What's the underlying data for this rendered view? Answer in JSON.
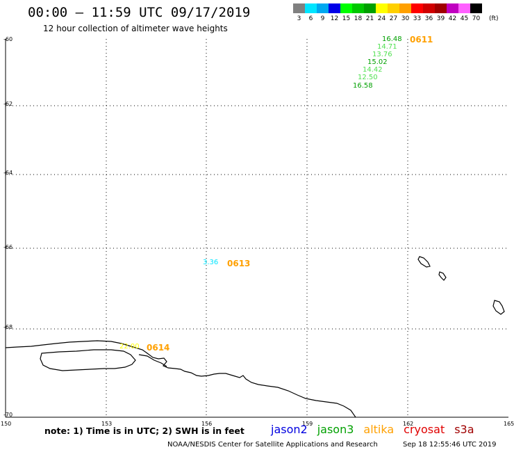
{
  "header": {
    "title": "00:00 – 11:59 UTC 09/17/2019",
    "subtitle": "12 hour collection of altimeter wave heights"
  },
  "legend": {
    "unit": "(ft)",
    "colors": [
      "#808080",
      "#00e5ff",
      "#00a8f0",
      "#0000e8",
      "#00ff00",
      "#00c800",
      "#00a000",
      "#ffff00",
      "#ffd000",
      "#ffa000",
      "#ff0000",
      "#d00000",
      "#a00000",
      "#c000c0",
      "#ff60ff",
      "#000000"
    ],
    "labels": [
      "3",
      "6",
      "9",
      "12",
      "15",
      "18",
      "21",
      "24",
      "27",
      "30",
      "33",
      "36",
      "39",
      "42",
      "45",
      "70"
    ]
  },
  "map": {
    "lat_labels": [
      "-60",
      "-62",
      "-64",
      "-66",
      "-68",
      "-70"
    ],
    "lon_labels": [
      "150",
      "153",
      "156",
      "159",
      "162",
      "165"
    ]
  },
  "passes": [
    {
      "id": "0611",
      "color": "#ffa000",
      "heights": [
        {
          "v": "16.48",
          "c": "#00a000"
        },
        {
          "v": "14.71",
          "c": "#50e050"
        },
        {
          "v": "13.76",
          "c": "#50e050"
        },
        {
          "v": "15.02",
          "c": "#00a000"
        },
        {
          "v": "14.42",
          "c": "#50e050"
        },
        {
          "v": "12.50",
          "c": "#50e050"
        },
        {
          "v": "16.58",
          "c": "#00a000"
        }
      ]
    },
    {
      "id": "0613",
      "color": "#ffa000",
      "heights": [
        {
          "v": "3.36",
          "c": "#00e5ff"
        }
      ]
    },
    {
      "id": "0614",
      "color": "#ffa000",
      "heights": [
        {
          "v": "22.00",
          "c": "#ffff00"
        }
      ]
    }
  ],
  "note": "note: 1) Time is in UTC; 2) SWH is in feet",
  "satellites": [
    {
      "name": "jason2",
      "color": "#0000e0"
    },
    {
      "name": "jason3",
      "color": "#00a000"
    },
    {
      "name": "altika",
      "color": "#ffa000"
    },
    {
      "name": "cryosat",
      "color": "#e00000"
    },
    {
      "name": "s3a",
      "color": "#a00000"
    }
  ],
  "footer": {
    "source": "NOAA/NESDIS Center for Satellite Applications and Research",
    "timestamp": "Sep 18 12:55:46 UTC 2019"
  }
}
